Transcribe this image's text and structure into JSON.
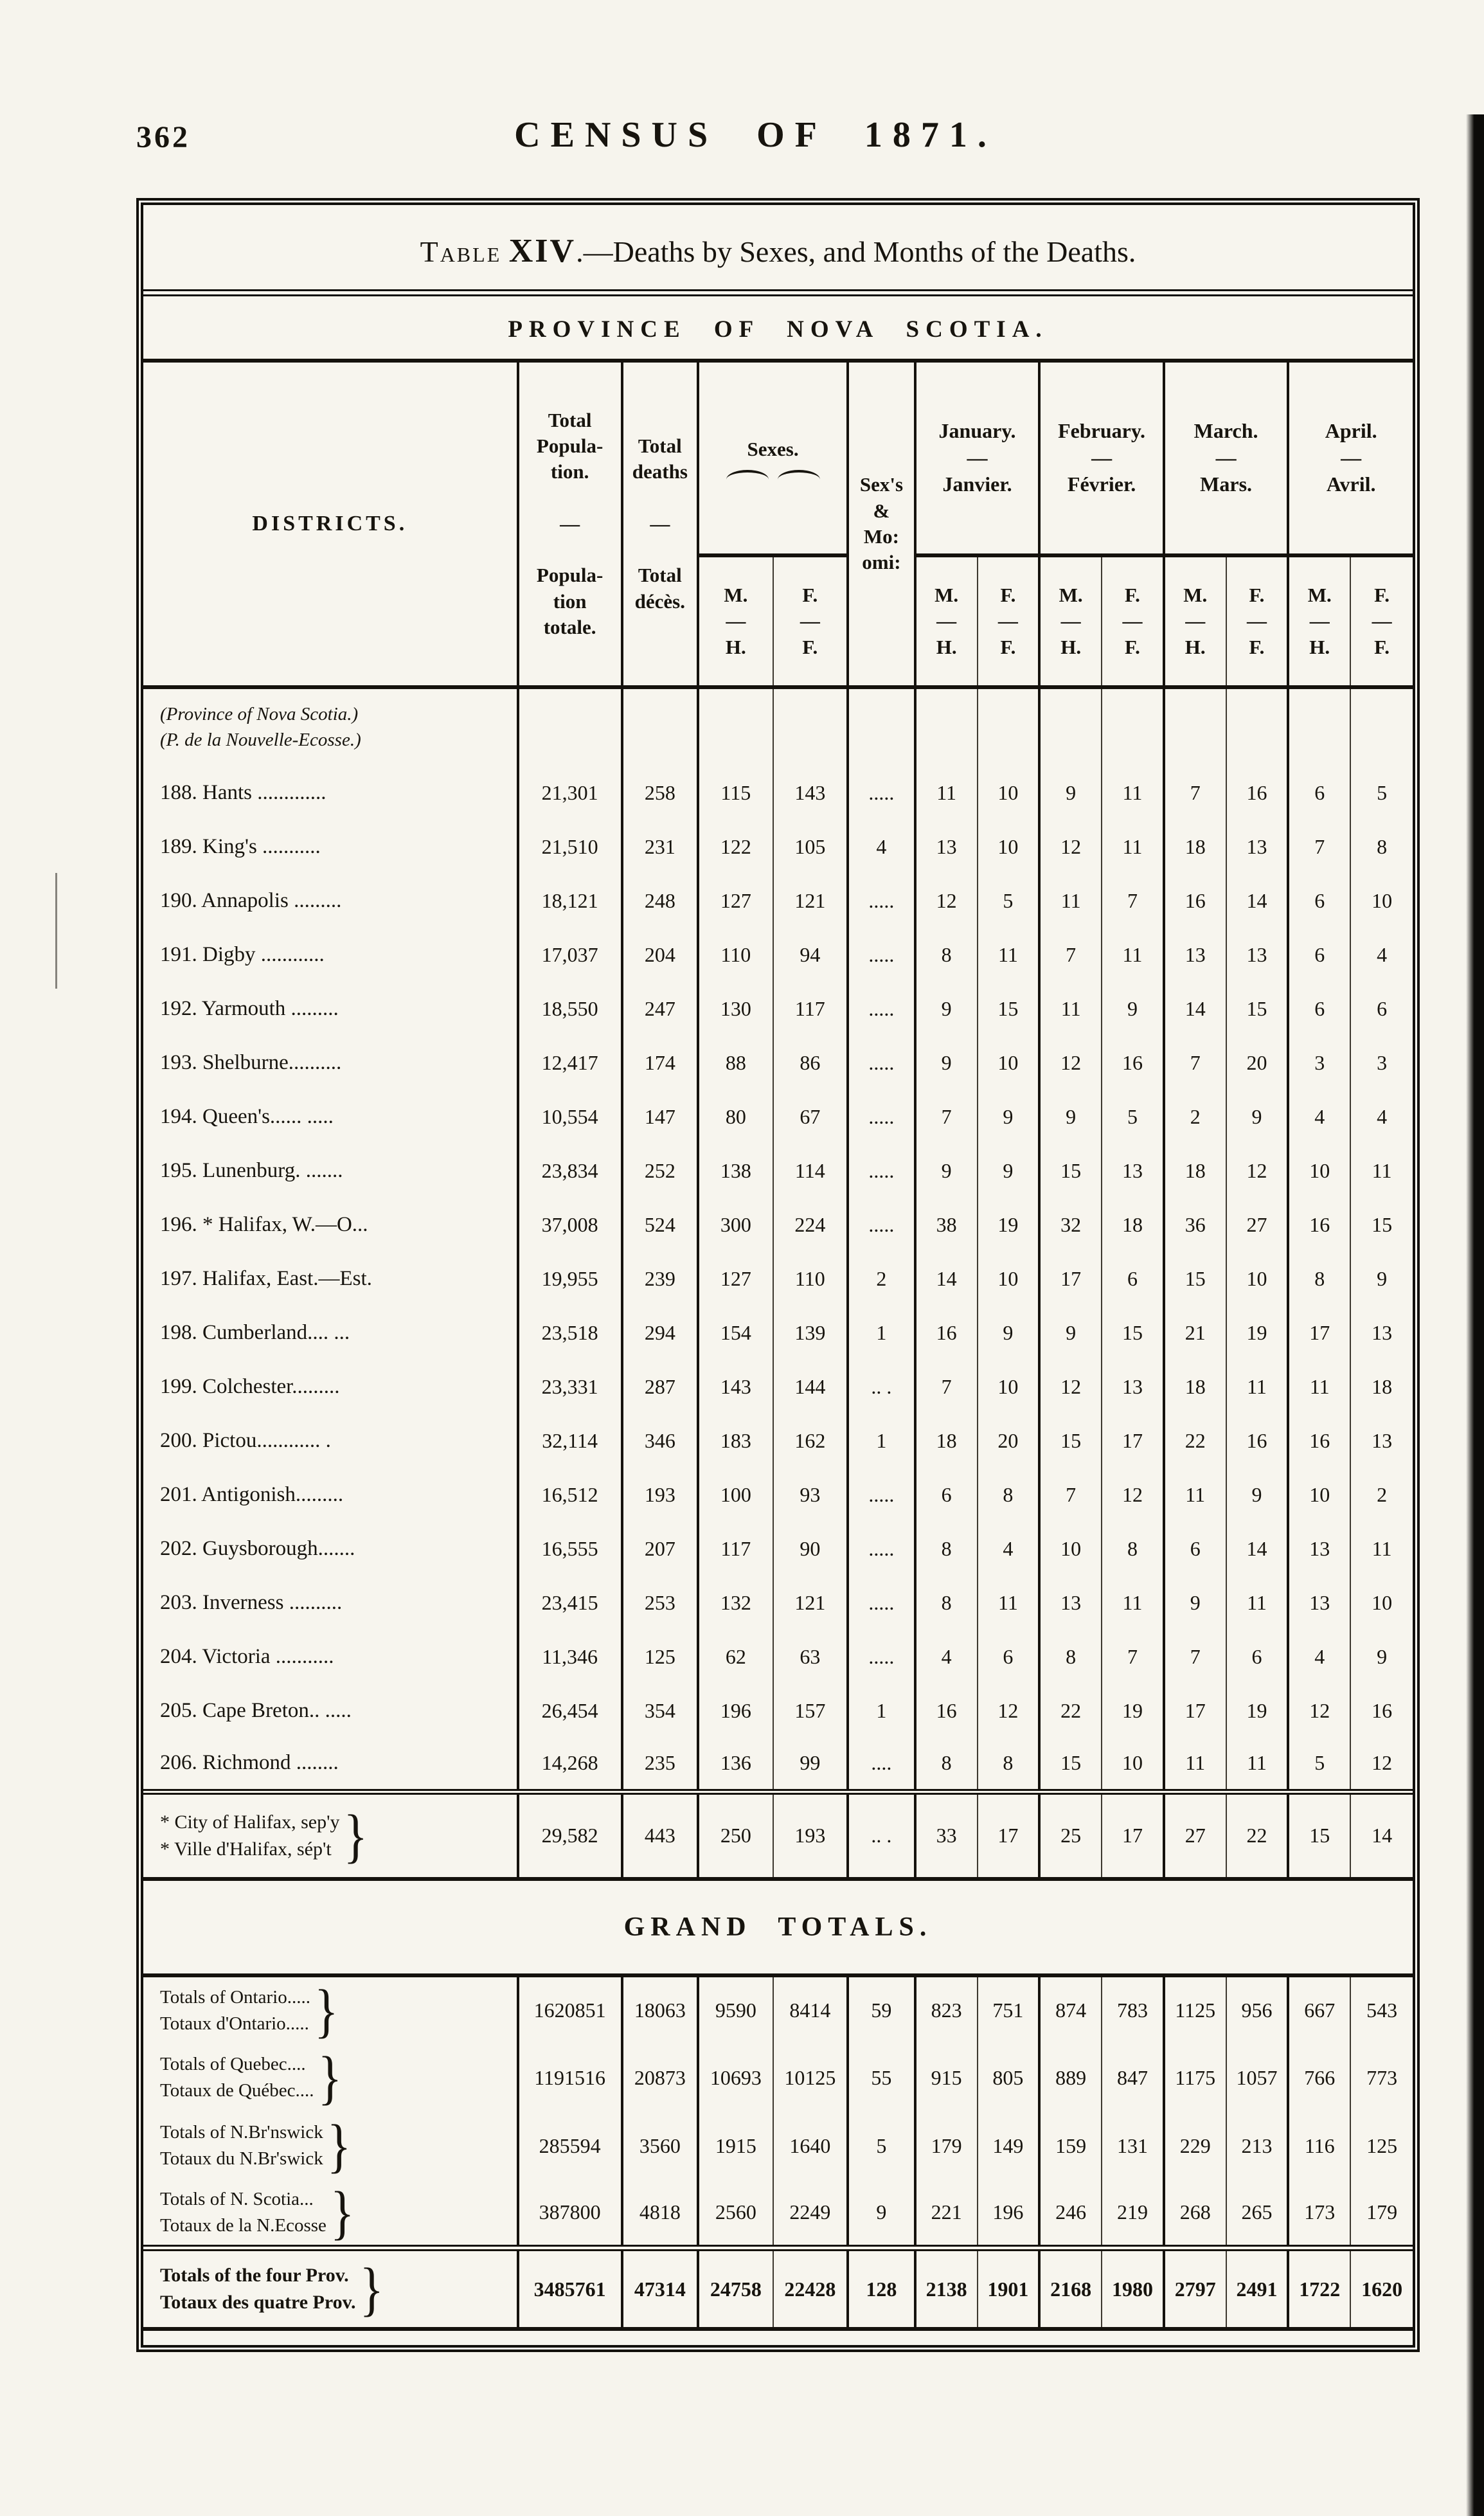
{
  "page": {
    "number": "362",
    "title": "CENSUS OF 1871."
  },
  "table": {
    "title": {
      "prefix": "Table",
      "numeral": "XIV",
      "suffix": ".—Deaths by Sexes, and Months of the Deaths."
    },
    "province_heading": "PROVINCE OF NOVA SCOTIA.",
    "brace_char": "}",
    "head": {
      "districts": "DISTRICTS.",
      "population": "Total\nPopula-\ntion.\n\n—\n\nPopula-\ntion\ntotale.",
      "deaths": "Total\ndeaths\n\n—\n\nTotal\ndécès.",
      "sexes": "Sexes.",
      "sex_male": "M.\n—\nH.",
      "sex_female": "F.\n—\nF.",
      "omitted": "Sex's\n&\nMo:\nomi:",
      "months": [
        "January.\n—\nJanvier.",
        "February.\n—\nFévrier.",
        "March.\n—\nMars.",
        "April.\n—\nAvril."
      ]
    },
    "province_note": "(Province of Nova Scotia.)\n(P. de la Nouvelle-Ecosse.)",
    "rows": [
      {
        "district": "188. Hants .............",
        "values": [
          "21,301",
          "258",
          "115",
          "143",
          ".....",
          "11",
          "10",
          "9",
          "11",
          "7",
          "16",
          "6",
          "5"
        ]
      },
      {
        "district": "189. King's ...........",
        "values": [
          "21,510",
          "231",
          "122",
          "105",
          "4",
          "13",
          "10",
          "12",
          "11",
          "18",
          "13",
          "7",
          "8"
        ]
      },
      {
        "district": "190. Annapolis .........",
        "values": [
          "18,121",
          "248",
          "127",
          "121",
          ".....",
          "12",
          "5",
          "11",
          "7",
          "16",
          "14",
          "6",
          "10"
        ]
      },
      {
        "district": "191. Digby ............",
        "values": [
          "17,037",
          "204",
          "110",
          "94",
          ".....",
          "8",
          "11",
          "7",
          "11",
          "13",
          "13",
          "6",
          "4"
        ]
      },
      {
        "district": "192. Yarmouth .........",
        "values": [
          "18,550",
          "247",
          "130",
          "117",
          ".....",
          "9",
          "15",
          "11",
          "9",
          "14",
          "15",
          "6",
          "6"
        ]
      },
      {
        "district": "193. Shelburne..........",
        "values": [
          "12,417",
          "174",
          "88",
          "86",
          ".....",
          "9",
          "10",
          "12",
          "16",
          "7",
          "20",
          "3",
          "3"
        ]
      },
      {
        "district": "194. Queen's...... .....",
        "values": [
          "10,554",
          "147",
          "80",
          "67",
          ".....",
          "7",
          "9",
          "9",
          "5",
          "2",
          "9",
          "4",
          "4"
        ]
      },
      {
        "district": "195. Lunenburg. .......",
        "values": [
          "23,834",
          "252",
          "138",
          "114",
          ".....",
          "9",
          "9",
          "15",
          "13",
          "18",
          "12",
          "10",
          "11"
        ]
      },
      {
        "district": "196. * Halifax, W.—O...",
        "values": [
          "37,008",
          "524",
          "300",
          "224",
          ".....",
          "38",
          "19",
          "32",
          "18",
          "36",
          "27",
          "16",
          "15"
        ]
      },
      {
        "district": "197. Halifax, East.—Est.",
        "values": [
          "19,955",
          "239",
          "127",
          "110",
          "2",
          "14",
          "10",
          "17",
          "6",
          "15",
          "10",
          "8",
          "9"
        ]
      },
      {
        "district": "198. Cumberland.... ...",
        "values": [
          "23,518",
          "294",
          "154",
          "139",
          "1",
          "16",
          "9",
          "9",
          "15",
          "21",
          "19",
          "17",
          "13"
        ]
      },
      {
        "district": "199. Colchester.........",
        "values": [
          "23,331",
          "287",
          "143",
          "144",
          ".. .",
          "7",
          "10",
          "12",
          "13",
          "18",
          "11",
          "11",
          "18"
        ]
      },
      {
        "district": "200. Pictou............ .",
        "values": [
          "32,114",
          "346",
          "183",
          "162",
          "1",
          "18",
          "20",
          "15",
          "17",
          "22",
          "16",
          "16",
          "13"
        ]
      },
      {
        "district": "201. Antigonish.........",
        "values": [
          "16,512",
          "193",
          "100",
          "93",
          ".....",
          "6",
          "8",
          "7",
          "12",
          "11",
          "9",
          "10",
          "2"
        ]
      },
      {
        "district": "202. Guysborough.......",
        "values": [
          "16,555",
          "207",
          "117",
          "90",
          ".....",
          "8",
          "4",
          "10",
          "8",
          "6",
          "14",
          "13",
          "11"
        ]
      },
      {
        "district": "203. Inverness ..........",
        "values": [
          "23,415",
          "253",
          "132",
          "121",
          ".....",
          "8",
          "11",
          "13",
          "11",
          "9",
          "11",
          "13",
          "10"
        ]
      },
      {
        "district": "204. Victoria ...........",
        "values": [
          "11,346",
          "125",
          "62",
          "63",
          ".....",
          "4",
          "6",
          "8",
          "7",
          "7",
          "6",
          "4",
          "9"
        ]
      },
      {
        "district": "205. Cape Breton.. .....",
        "values": [
          "26,454",
          "354",
          "196",
          "157",
          "1",
          "16",
          "12",
          "22",
          "19",
          "17",
          "19",
          "12",
          "16"
        ]
      },
      {
        "district": "206. Richmond ........",
        "values": [
          "14,268",
          "235",
          "136",
          "99",
          "....",
          "8",
          "8",
          "15",
          "10",
          "11",
          "11",
          "5",
          "12"
        ]
      }
    ],
    "halifax_city": {
      "label_en": "* City of Halifax, sep'y",
      "label_fr": "* Ville d'Halifax, sép't",
      "values": [
        "29,582",
        "443",
        "250",
        "193",
        ".. .",
        "33",
        "17",
        "25",
        "17",
        "27",
        "22",
        "15",
        "14"
      ]
    }
  },
  "grand_totals": {
    "title": "GRAND  TOTALS.",
    "rows": [
      {
        "label_en": "Totals of Ontario.....",
        "label_fr": "Totaux d'Ontario.....",
        "values": [
          "1620851",
          "18063",
          "9590",
          "8414",
          "59",
          "823",
          "751",
          "874",
          "783",
          "1125",
          "956",
          "667",
          "543"
        ]
      },
      {
        "label_en": "Totals of Quebec....",
        "label_fr": "Totaux de Québec....",
        "values": [
          "1191516",
          "20873",
          "10693",
          "10125",
          "55",
          "915",
          "805",
          "889",
          "847",
          "1175",
          "1057",
          "766",
          "773"
        ]
      },
      {
        "label_en": "Totals of N.Br'nswick",
        "label_fr": "Totaux du N.Br'swick",
        "values": [
          "285594",
          "3560",
          "1915",
          "1640",
          "5",
          "179",
          "149",
          "159",
          "131",
          "229",
          "213",
          "116",
          "125"
        ]
      },
      {
        "label_en": "Totals of N. Scotia...",
        "label_fr": "Totaux de la N.Ecosse",
        "values": [
          "387800",
          "4818",
          "2560",
          "2249",
          "9",
          "221",
          "196",
          "246",
          "219",
          "268",
          "265",
          "173",
          "179"
        ]
      }
    ],
    "final_row": {
      "label_en": "Totals of the four Prov.",
      "label_fr": "Totaux des quatre Prov.",
      "values": [
        "3485761",
        "47314",
        "24758",
        "22428",
        "128",
        "2138",
        "1901",
        "2168",
        "1980",
        "2797",
        "2491",
        "1722",
        "1620"
      ]
    }
  }
}
